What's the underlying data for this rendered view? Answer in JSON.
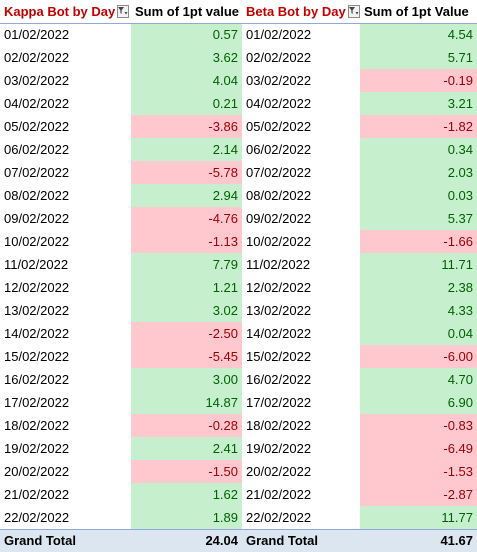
{
  "kappa": {
    "header_label": "Kappa Bot by Day",
    "value_header": "Sum of 1pt value",
    "filter_icon": "filter-dropdown-icon",
    "rows": [
      {
        "date": "01/02/2022",
        "value": "0.57",
        "sign": "pos"
      },
      {
        "date": "02/02/2022",
        "value": "3.62",
        "sign": "pos"
      },
      {
        "date": "03/02/2022",
        "value": "4.04",
        "sign": "pos"
      },
      {
        "date": "04/02/2022",
        "value": "0.21",
        "sign": "pos"
      },
      {
        "date": "05/02/2022",
        "value": "-3.86",
        "sign": "neg"
      },
      {
        "date": "06/02/2022",
        "value": "2.14",
        "sign": "pos"
      },
      {
        "date": "07/02/2022",
        "value": "-5.78",
        "sign": "neg"
      },
      {
        "date": "08/02/2022",
        "value": "2.94",
        "sign": "pos"
      },
      {
        "date": "09/02/2022",
        "value": "-4.76",
        "sign": "neg"
      },
      {
        "date": "10/02/2022",
        "value": "-1.13",
        "sign": "neg"
      },
      {
        "date": "11/02/2022",
        "value": "7.79",
        "sign": "pos"
      },
      {
        "date": "12/02/2022",
        "value": "1.21",
        "sign": "pos"
      },
      {
        "date": "13/02/2022",
        "value": "3.02",
        "sign": "pos"
      },
      {
        "date": "14/02/2022",
        "value": "-2.50",
        "sign": "neg"
      },
      {
        "date": "15/02/2022",
        "value": "-5.45",
        "sign": "neg"
      },
      {
        "date": "16/02/2022",
        "value": "3.00",
        "sign": "pos"
      },
      {
        "date": "17/02/2022",
        "value": "14.87",
        "sign": "pos"
      },
      {
        "date": "18/02/2022",
        "value": "-0.28",
        "sign": "neg"
      },
      {
        "date": "19/02/2022",
        "value": "2.41",
        "sign": "pos"
      },
      {
        "date": "20/02/2022",
        "value": "-1.50",
        "sign": "neg"
      },
      {
        "date": "21/02/2022",
        "value": "1.62",
        "sign": "pos"
      },
      {
        "date": "22/02/2022",
        "value": "1.89",
        "sign": "pos"
      }
    ],
    "total_label": "Grand Total",
    "total_value": "24.04"
  },
  "beta": {
    "header_label": "Beta Bot by Day",
    "value_header": "Sum of 1pt Value",
    "filter_icon": "filter-dropdown-icon",
    "rows": [
      {
        "date": "01/02/2022",
        "value": "4.54",
        "sign": "pos"
      },
      {
        "date": "02/02/2022",
        "value": "5.71",
        "sign": "pos"
      },
      {
        "date": "03/02/2022",
        "value": "-0.19",
        "sign": "neg"
      },
      {
        "date": "04/02/2022",
        "value": "3.21",
        "sign": "pos"
      },
      {
        "date": "05/02/2022",
        "value": "-1.82",
        "sign": "neg"
      },
      {
        "date": "06/02/2022",
        "value": "0.34",
        "sign": "pos"
      },
      {
        "date": "07/02/2022",
        "value": "2.03",
        "sign": "pos"
      },
      {
        "date": "08/02/2022",
        "value": "0.03",
        "sign": "pos"
      },
      {
        "date": "09/02/2022",
        "value": "5.37",
        "sign": "pos"
      },
      {
        "date": "10/02/2022",
        "value": "-1.66",
        "sign": "neg"
      },
      {
        "date": "11/02/2022",
        "value": "11.71",
        "sign": "pos"
      },
      {
        "date": "12/02/2022",
        "value": "2.38",
        "sign": "pos"
      },
      {
        "date": "13/02/2022",
        "value": "4.33",
        "sign": "pos"
      },
      {
        "date": "14/02/2022",
        "value": "0.04",
        "sign": "pos"
      },
      {
        "date": "15/02/2022",
        "value": "-6.00",
        "sign": "neg"
      },
      {
        "date": "16/02/2022",
        "value": "4.70",
        "sign": "pos"
      },
      {
        "date": "17/02/2022",
        "value": "6.90",
        "sign": "pos"
      },
      {
        "date": "18/02/2022",
        "value": "-0.83",
        "sign": "neg"
      },
      {
        "date": "19/02/2022",
        "value": "-6.49",
        "sign": "neg"
      },
      {
        "date": "20/02/2022",
        "value": "-1.53",
        "sign": "neg"
      },
      {
        "date": "21/02/2022",
        "value": "-2.87",
        "sign": "neg"
      },
      {
        "date": "22/02/2022",
        "value": "11.77",
        "sign": "pos"
      }
    ],
    "total_label": "Grand Total",
    "total_value": "41.67"
  },
  "colors": {
    "positive_fill": "#c6efce",
    "positive_text": "#006100",
    "negative_fill": "#ffc7ce",
    "negative_text": "#9c0006",
    "header_accent": "#c00000",
    "total_fill": "#dce6f1"
  }
}
